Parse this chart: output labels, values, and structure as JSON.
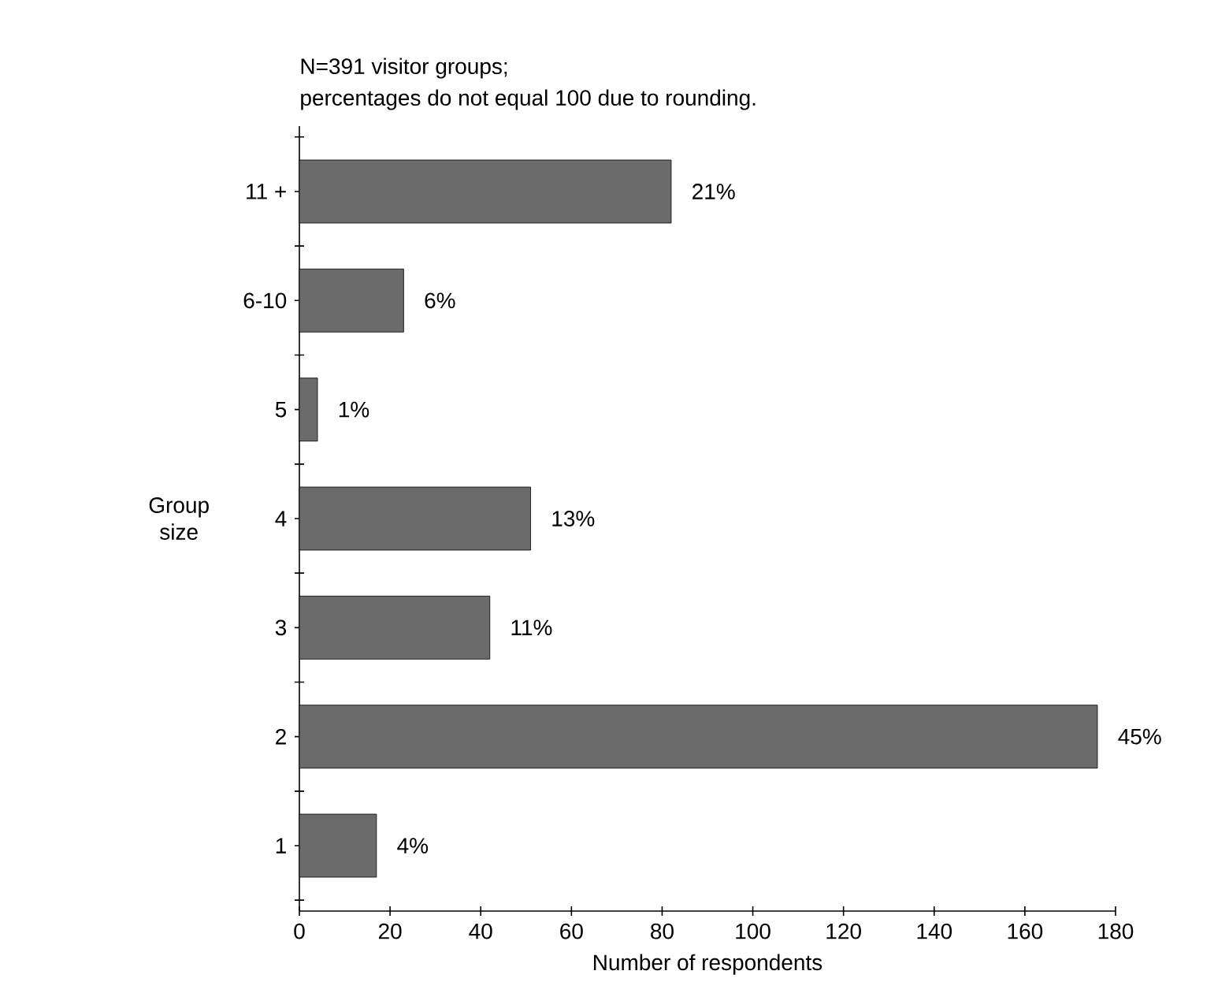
{
  "chart_data": {
    "type": "bar",
    "orientation": "horizontal",
    "title": "N=391 visitor groups;",
    "subtitle": "percentages do not equal 100 due to rounding.",
    "xlabel": "Number of respondents",
    "ylabel": "Group size",
    "categories": [
      "11 +",
      "6-10",
      "5",
      "4",
      "3",
      "2",
      "1"
    ],
    "values": [
      82,
      23,
      4,
      51,
      42,
      176,
      17
    ],
    "annotations": [
      {
        "text": "21%",
        "x": 82,
        "y": "11 +"
      },
      {
        "text": "6%",
        "x": 23,
        "y": "6-10"
      },
      {
        "text": "1%",
        "x": 4,
        "y": "5"
      },
      {
        "text": "13%",
        "x": 51,
        "y": "4"
      },
      {
        "text": "11%",
        "x": 42,
        "y": "3"
      },
      {
        "text": "45%",
        "x": 176,
        "y": "2"
      },
      {
        "text": "4%",
        "x": 17,
        "y": "1"
      }
    ],
    "color": "#6b6b6b",
    "xlim": [
      0,
      180
    ],
    "xticks": [
      0,
      20,
      40,
      60,
      80,
      100,
      120,
      140,
      160,
      180
    ]
  }
}
